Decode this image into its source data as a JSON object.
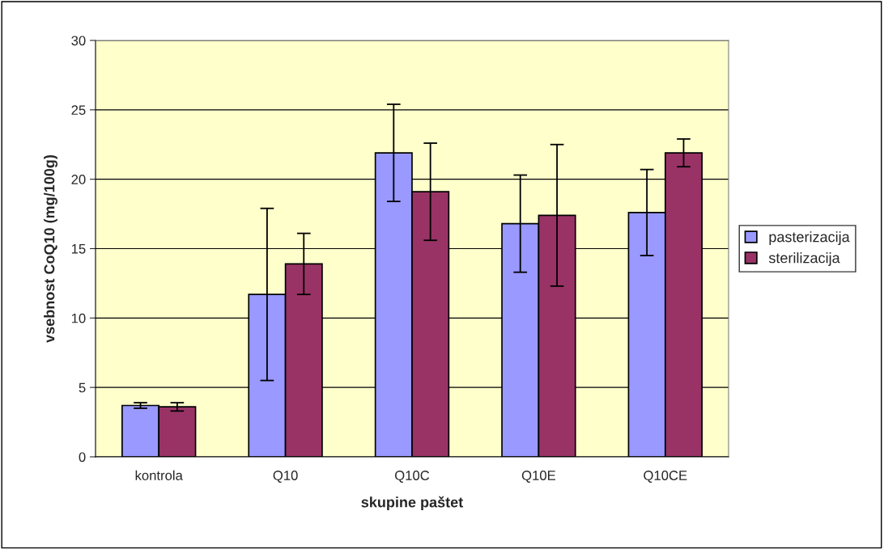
{
  "chart_data": {
    "type": "bar",
    "xlabel": "skupine paštet",
    "ylabel": "vsebnost CoQ10 (mg/100g)",
    "categories": [
      "kontrola",
      "Q10",
      "Q10C",
      "Q10E",
      "Q10CE"
    ],
    "series": [
      {
        "name": "pasterizacija",
        "color": "#9999ff",
        "values": [
          3.7,
          11.7,
          21.9,
          16.8,
          17.6
        ],
        "errors": [
          0.2,
          6.2,
          3.5,
          3.5,
          3.1
        ]
      },
      {
        "name": "sterilizacija",
        "color": "#993366",
        "values": [
          3.6,
          13.9,
          19.1,
          17.4,
          21.9
        ],
        "errors": [
          0.3,
          2.2,
          3.5,
          5.1,
          1.0
        ]
      }
    ],
    "ylim": [
      0,
      30
    ],
    "yticks": [
      0,
      5,
      10,
      15,
      20,
      25,
      30
    ],
    "grid": "y",
    "legend": "right"
  }
}
